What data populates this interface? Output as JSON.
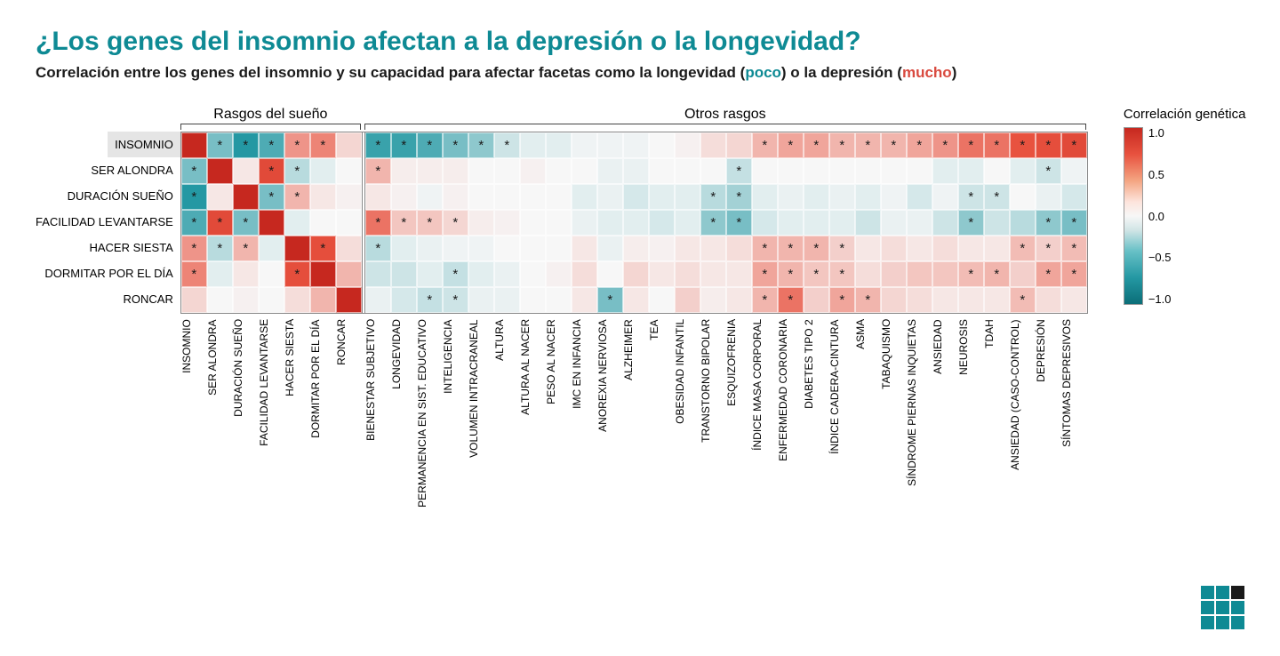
{
  "title": "¿Los genes del insomnio afectan a la depresión o la longevidad?",
  "subtitle_pre": "Correlación entre los genes del insomnio y su capacidad para afectar facetas como la longevidad (",
  "subtitle_poco": "poco",
  "subtitle_mid": ") o la depresión (",
  "subtitle_mucho": "mucho",
  "subtitle_post": ")",
  "group_headers": [
    "Rasgos del sueño",
    "Otros rasgos"
  ],
  "legend_title": "Correlación genética",
  "legend_ticks": [
    "1.0",
    "0.5",
    "0.0",
    "−0.5",
    "−1.0"
  ],
  "row_labels": [
    "INSOMNIO",
    "SER ALONDRA",
    "DURACIÓN SUEÑO",
    "FACILIDAD LEVANTARSE",
    "HACER SIESTA",
    "DORMITAR POR EL DÍA",
    "RONCAR"
  ],
  "highlight_row": 0,
  "col_labels_a": [
    "INSOMNIO",
    "SER ALONDRA",
    "DURACIÓN SUEÑO",
    "FACILIDAD LEVANTARSE",
    "HACER SIESTA",
    "DORMITAR POR EL DÍA",
    "RONCAR"
  ],
  "col_labels_b": [
    "BIENESTAR SUBJETIVO",
    "LONGEVIDAD",
    "PERMANENCIA EN SIST. EDUCATIVO",
    "INTELIGENCIA",
    "VOLUMEN INTRACRANEAL",
    "ALTURA",
    "ALTURA AL NACER",
    "PESO AL NACER",
    "IMC EN INFANCIA",
    "ANOREXIA NERVIOSA",
    "ALZHEIMER",
    "TEA",
    "OBESIDAD INFANTIL",
    "TRANSTORNO BIPOLAR",
    "ESQUIZOFRENIA",
    "ÍNDICE MASA CORPORAL",
    "ENFERMEDAD CORONARIA",
    "DIABETES TIPO 2",
    "ÍNDICE CADERA-CINTURA",
    "ASMA",
    "TABAQUISMO",
    "SÍNDROME PIERNAS INQUIETAS",
    "ANSIEDAD",
    "NEUROSIS",
    "TDAH",
    "ANSIEDAD (CASO-CONTROL)",
    "DEPRESIÓN",
    "SÍNTOMAS DEPRESIVOS"
  ],
  "cell_size": 29,
  "divider_width": 4,
  "colors": {
    "title": "#0e8a94",
    "poco": "#0e8a94",
    "mucho": "#d94a3f",
    "highlight_bg": "#e5e5e5",
    "border": "#888888"
  },
  "colorscale": {
    "neg1": "#0b6e78",
    "neg05": "#2498a3",
    "zero": "#f7f7f7",
    "pos05": "#e8523f",
    "pos1": "#c6281f"
  },
  "matrix": {
    "rows": [
      {
        "a": [
          {
            "v": 1.0
          },
          {
            "v": -0.3,
            "s": 1
          },
          {
            "v": -0.5,
            "s": 1
          },
          {
            "v": -0.4,
            "s": 1
          },
          {
            "v": 0.3,
            "s": 1
          },
          {
            "v": 0.35,
            "s": 1
          },
          {
            "v": 0.1
          }
        ],
        "b": [
          {
            "v": -0.45,
            "s": 1
          },
          {
            "v": -0.45,
            "s": 1
          },
          {
            "v": -0.4,
            "s": 1
          },
          {
            "v": -0.3,
            "s": 1
          },
          {
            "v": -0.25,
            "s": 1
          },
          {
            "v": -0.1,
            "s": 1
          },
          {
            "v": -0.05
          },
          {
            "v": -0.05
          },
          {
            "v": -0.02
          },
          {
            "v": -0.02
          },
          {
            "v": -0.02
          },
          {
            "v": 0.0
          },
          {
            "v": 0.02
          },
          {
            "v": 0.08
          },
          {
            "v": 0.1
          },
          {
            "v": 0.2,
            "s": 1
          },
          {
            "v": 0.25,
            "s": 1
          },
          {
            "v": 0.25,
            "s": 1
          },
          {
            "v": 0.2,
            "s": 1
          },
          {
            "v": 0.2,
            "s": 1
          },
          {
            "v": 0.2,
            "s": 1
          },
          {
            "v": 0.25,
            "s": 1
          },
          {
            "v": 0.3,
            "s": 1
          },
          {
            "v": 0.4,
            "s": 1
          },
          {
            "v": 0.4,
            "s": 1
          },
          {
            "v": 0.5,
            "s": 1
          },
          {
            "v": 0.55,
            "s": 1
          },
          {
            "v": 0.6,
            "s": 1
          }
        ]
      },
      {
        "a": [
          {
            "v": -0.3,
            "s": 1
          },
          {
            "v": 1.0
          },
          {
            "v": 0.05
          },
          {
            "v": 0.6,
            "s": 1
          },
          {
            "v": -0.15,
            "s": 1
          },
          {
            "v": -0.05
          },
          {
            "v": 0.0
          }
        ],
        "b": [
          {
            "v": 0.2,
            "s": 1
          },
          {
            "v": 0.03
          },
          {
            "v": 0.03
          },
          {
            "v": 0.03
          },
          {
            "v": 0.0
          },
          {
            "v": 0.0
          },
          {
            "v": 0.02
          },
          {
            "v": 0.0
          },
          {
            "v": 0.0
          },
          {
            "v": -0.03
          },
          {
            "v": -0.03
          },
          {
            "v": 0.0
          },
          {
            "v": 0.0
          },
          {
            "v": 0.0
          },
          {
            "v": -0.12,
            "s": 1
          },
          {
            "v": 0.0
          },
          {
            "v": 0.0
          },
          {
            "v": 0.0
          },
          {
            "v": 0.0
          },
          {
            "v": 0.0
          },
          {
            "v": 0.0
          },
          {
            "v": 0.0
          },
          {
            "v": -0.05
          },
          {
            "v": -0.05
          },
          {
            "v": 0.0
          },
          {
            "v": -0.05
          },
          {
            "v": -0.1,
            "s": 1
          },
          {
            "v": -0.02
          }
        ]
      },
      {
        "a": [
          {
            "v": -0.5,
            "s": 1
          },
          {
            "v": 0.05
          },
          {
            "v": 1.0
          },
          {
            "v": -0.3,
            "s": 1
          },
          {
            "v": 0.2,
            "s": 1
          },
          {
            "v": 0.05
          },
          {
            "v": 0.02
          }
        ],
        "b": [
          {
            "v": 0.05
          },
          {
            "v": 0.02
          },
          {
            "v": -0.02
          },
          {
            "v": 0.02
          },
          {
            "v": 0.0
          },
          {
            "v": 0.0
          },
          {
            "v": 0.0
          },
          {
            "v": 0.0
          },
          {
            "v": -0.05
          },
          {
            "v": -0.03
          },
          {
            "v": -0.08
          },
          {
            "v": -0.05
          },
          {
            "v": -0.05
          },
          {
            "v": -0.15,
            "s": 1
          },
          {
            "v": -0.2,
            "s": 1
          },
          {
            "v": -0.05
          },
          {
            "v": -0.03
          },
          {
            "v": -0.05
          },
          {
            "v": -0.03
          },
          {
            "v": -0.05
          },
          {
            "v": -0.02
          },
          {
            "v": -0.08
          },
          {
            "v": -0.02
          },
          {
            "v": -0.1,
            "s": 1
          },
          {
            "v": -0.1,
            "s": 1
          },
          {
            "v": 0.0
          },
          {
            "v": -0.03
          },
          {
            "v": -0.08
          }
        ]
      },
      {
        "a": [
          {
            "v": -0.4,
            "s": 1
          },
          {
            "v": 0.6,
            "s": 1
          },
          {
            "v": -0.3,
            "s": 1
          },
          {
            "v": 1.0
          },
          {
            "v": -0.05
          },
          {
            "v": 0.0
          },
          {
            "v": 0.0
          }
        ],
        "b": [
          {
            "v": 0.4,
            "s": 1
          },
          {
            "v": 0.15,
            "s": 1
          },
          {
            "v": 0.15,
            "s": 1
          },
          {
            "v": 0.1,
            "s": 1
          },
          {
            "v": 0.03
          },
          {
            "v": 0.02
          },
          {
            "v": 0.0
          },
          {
            "v": 0.0
          },
          {
            "v": -0.03
          },
          {
            "v": -0.05
          },
          {
            "v": -0.05
          },
          {
            "v": -0.08
          },
          {
            "v": -0.05
          },
          {
            "v": -0.25,
            "s": 1
          },
          {
            "v": -0.3,
            "s": 1
          },
          {
            "v": -0.08
          },
          {
            "v": -0.05
          },
          {
            "v": -0.05
          },
          {
            "v": -0.05
          },
          {
            "v": -0.1
          },
          {
            "v": -0.03
          },
          {
            "v": -0.03
          },
          {
            "v": -0.1
          },
          {
            "v": -0.25,
            "s": 1
          },
          {
            "v": -0.1
          },
          {
            "v": -0.15
          },
          {
            "v": -0.25,
            "s": 1
          },
          {
            "v": -0.3,
            "s": 1
          }
        ]
      },
      {
        "a": [
          {
            "v": 0.3,
            "s": 1
          },
          {
            "v": -0.15,
            "s": 1
          },
          {
            "v": 0.2,
            "s": 1
          },
          {
            "v": -0.05
          },
          {
            "v": 1.0
          },
          {
            "v": 0.55,
            "s": 1
          },
          {
            "v": 0.08
          }
        ],
        "b": [
          {
            "v": -0.15,
            "s": 1
          },
          {
            "v": -0.05
          },
          {
            "v": -0.03
          },
          {
            "v": -0.02
          },
          {
            "v": -0.02
          },
          {
            "v": 0.0
          },
          {
            "v": 0.0
          },
          {
            "v": 0.0
          },
          {
            "v": 0.05
          },
          {
            "v": -0.03
          },
          {
            "v": 0.03
          },
          {
            "v": 0.02
          },
          {
            "v": 0.05
          },
          {
            "v": 0.05
          },
          {
            "v": 0.08
          },
          {
            "v": 0.2,
            "s": 1
          },
          {
            "v": 0.2,
            "s": 1
          },
          {
            "v": 0.2,
            "s": 1
          },
          {
            "v": 0.12,
            "s": 1
          },
          {
            "v": 0.05
          },
          {
            "v": 0.08
          },
          {
            "v": 0.05
          },
          {
            "v": 0.08
          },
          {
            "v": 0.05
          },
          {
            "v": 0.05
          },
          {
            "v": 0.18,
            "s": 1
          },
          {
            "v": 0.12,
            "s": 1
          },
          {
            "v": 0.18,
            "s": 1
          }
        ]
      },
      {
        "a": [
          {
            "v": 0.35,
            "s": 1
          },
          {
            "v": -0.05
          },
          {
            "v": 0.05
          },
          {
            "v": 0.0
          },
          {
            "v": 0.55,
            "s": 1
          },
          {
            "v": 1.0
          },
          {
            "v": 0.2
          }
        ],
        "b": [
          {
            "v": -0.1
          },
          {
            "v": -0.1
          },
          {
            "v": -0.05
          },
          {
            "v": -0.12,
            "s": 1
          },
          {
            "v": -0.05
          },
          {
            "v": -0.03
          },
          {
            "v": 0.0
          },
          {
            "v": 0.02
          },
          {
            "v": 0.08
          },
          {
            "v": 0.0
          },
          {
            "v": 0.1
          },
          {
            "v": 0.05
          },
          {
            "v": 0.08
          },
          {
            "v": 0.05
          },
          {
            "v": 0.05
          },
          {
            "v": 0.25,
            "s": 1
          },
          {
            "v": 0.2,
            "s": 1
          },
          {
            "v": 0.15,
            "s": 1
          },
          {
            "v": 0.15,
            "s": 1
          },
          {
            "v": 0.08
          },
          {
            "v": 0.12
          },
          {
            "v": 0.15
          },
          {
            "v": 0.15
          },
          {
            "v": 0.18,
            "s": 1
          },
          {
            "v": 0.2,
            "s": 1
          },
          {
            "v": 0.12
          },
          {
            "v": 0.25,
            "s": 1
          },
          {
            "v": 0.25,
            "s": 1
          }
        ]
      },
      {
        "a": [
          {
            "v": 0.1
          },
          {
            "v": 0.0
          },
          {
            "v": 0.02
          },
          {
            "v": 0.0
          },
          {
            "v": 0.08
          },
          {
            "v": 0.2
          },
          {
            "v": 1.0
          }
        ],
        "b": [
          {
            "v": -0.03
          },
          {
            "v": -0.08
          },
          {
            "v": -0.12,
            "s": 1
          },
          {
            "v": -0.1,
            "s": 1
          },
          {
            "v": -0.03
          },
          {
            "v": -0.03
          },
          {
            "v": 0.0
          },
          {
            "v": 0.0
          },
          {
            "v": 0.05
          },
          {
            "v": -0.3,
            "s": 1
          },
          {
            "v": 0.05
          },
          {
            "v": 0.0
          },
          {
            "v": 0.12
          },
          {
            "v": 0.03
          },
          {
            "v": 0.05
          },
          {
            "v": 0.2,
            "s": 1
          },
          {
            "v": 0.4,
            "s": 1
          },
          {
            "v": 0.12
          },
          {
            "v": 0.25,
            "s": 1
          },
          {
            "v": 0.2,
            "s": 1
          },
          {
            "v": 0.1
          },
          {
            "v": 0.08
          },
          {
            "v": 0.05
          },
          {
            "v": 0.05
          },
          {
            "v": 0.05
          },
          {
            "v": 0.18,
            "s": 1
          },
          {
            "v": 0.08
          },
          {
            "v": 0.05
          }
        ]
      }
    ]
  }
}
